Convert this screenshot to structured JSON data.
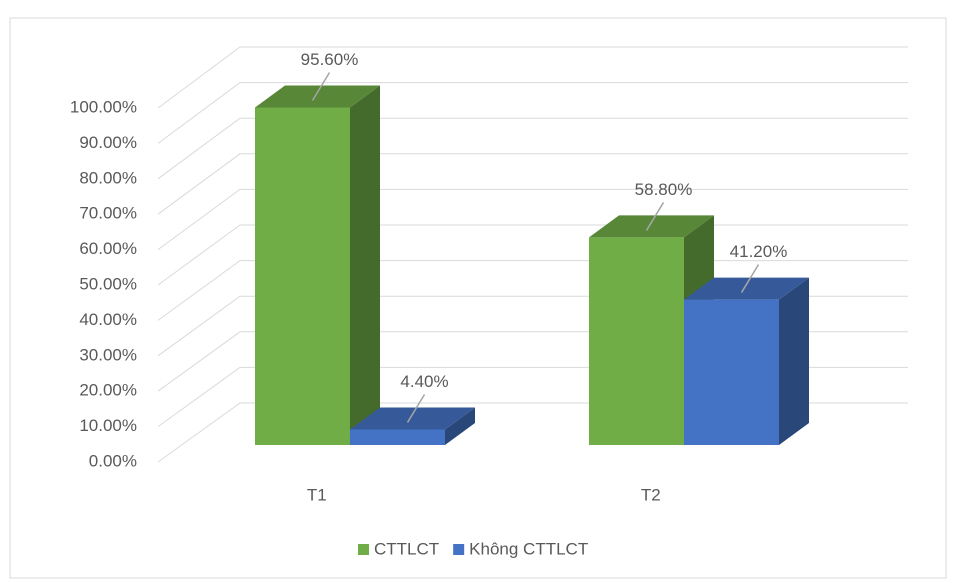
{
  "chart_data": {
    "type": "bar3d",
    "categories": [
      "T1",
      "T2"
    ],
    "series": [
      {
        "name": "CTTLCT",
        "color": "#70ad47",
        "values": [
          95.6,
          58.8
        ],
        "value_labels": [
          "95.60%",
          "58.80%"
        ]
      },
      {
        "name": "Không CTTLCT",
        "color": "#4472c4",
        "values": [
          4.4,
          41.2
        ],
        "value_labels": [
          "4.40%",
          "41.20%"
        ]
      }
    ],
    "ylim": [
      0,
      100
    ],
    "yticks": [
      {
        "value": 0,
        "label": "0.00%"
      },
      {
        "value": 10,
        "label": "10.00%"
      },
      {
        "value": 20,
        "label": "20.00%"
      },
      {
        "value": 30,
        "label": "30.00%"
      },
      {
        "value": 40,
        "label": "40.00%"
      },
      {
        "value": 50,
        "label": "50.00%"
      },
      {
        "value": 60,
        "label": "60.00%"
      },
      {
        "value": 70,
        "label": "70.00%"
      },
      {
        "value": 80,
        "label": "80.00%"
      },
      {
        "value": 90,
        "label": "90.00%"
      },
      {
        "value": 100,
        "label": "100.00%"
      }
    ],
    "grid": true,
    "legend": "bottom"
  }
}
